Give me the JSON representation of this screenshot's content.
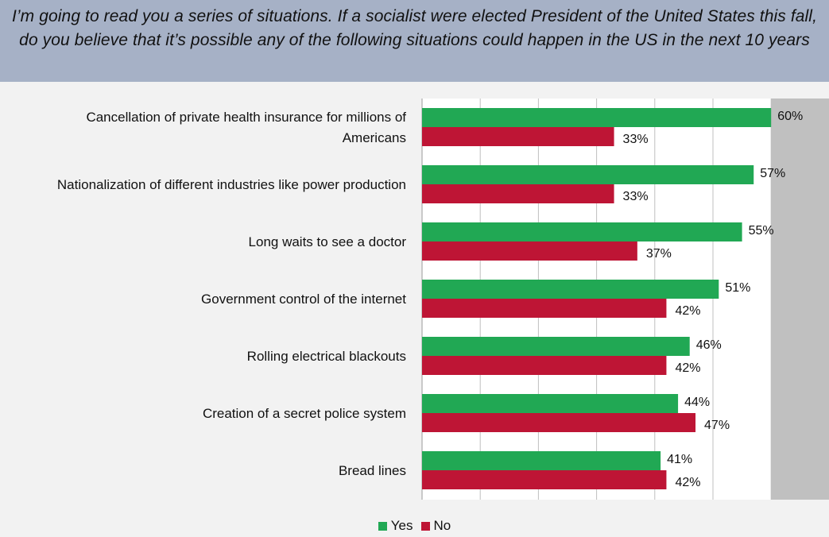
{
  "header": {
    "question": "I’m going to read you a series of situations. If a socialist were elected President of the United States this fall, do you believe that it’s possible any of the following situations could happen in the US in the next 10 years"
  },
  "colors": {
    "yes": "#21a854",
    "no": "#be1535",
    "plot_bg": "#ffffff",
    "plot_bg_right": "#c0c0c0",
    "grid": "#bfbfbf"
  },
  "chart_data": {
    "type": "bar",
    "orientation": "horizontal",
    "categories": [
      [
        "Cancellation of private health insurance for millions of",
        "Americans"
      ],
      [
        "Nationalization of different industries like power production"
      ],
      [
        "Long waits to see a doctor"
      ],
      [
        "Government control of the internet"
      ],
      [
        "Rolling electrical blackouts"
      ],
      [
        "Creation of a secret police system"
      ],
      [
        "Bread lines"
      ]
    ],
    "series": [
      {
        "name": "Yes",
        "values": [
          60,
          57,
          55,
          51,
          46,
          44,
          41
        ],
        "labels": [
          "60%",
          "57%",
          "55%",
          "51%",
          "46%",
          "44%",
          "41%"
        ]
      },
      {
        "name": "No",
        "values": [
          33,
          33,
          37,
          42,
          42,
          47,
          42
        ],
        "labels": [
          "33%",
          "33%",
          "37%",
          "42%",
          "42%",
          "47%",
          "42%"
        ]
      }
    ],
    "xlim": [
      0,
      70
    ],
    "grid": true,
    "legend_position": "bottom-center"
  }
}
